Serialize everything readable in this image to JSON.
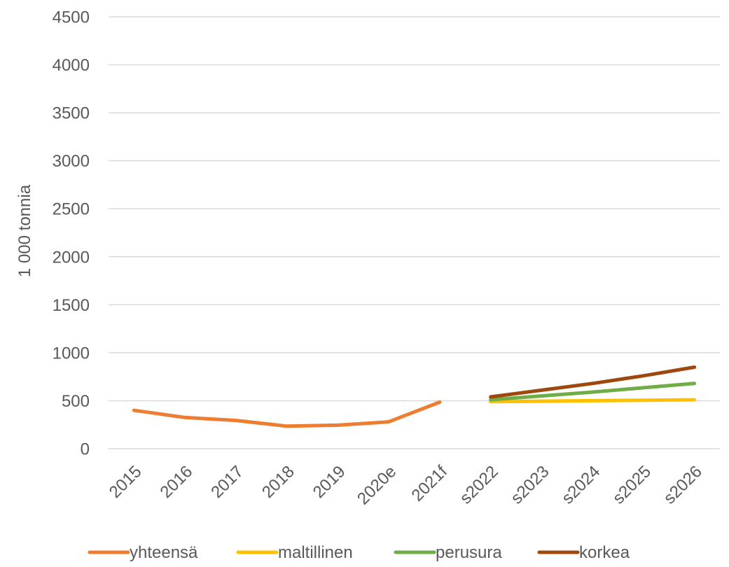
{
  "chart_data": {
    "type": "line",
    "title": "",
    "xlabel": "",
    "ylabel": "1 000 tonnia",
    "ylim": [
      0,
      4500
    ],
    "yticks": [
      0,
      500,
      1000,
      1500,
      2000,
      2500,
      3000,
      3500,
      4000,
      4500
    ],
    "grid": true,
    "legend_position": "bottom",
    "categories": [
      "2015",
      "2016",
      "2017",
      "2018",
      "2019",
      "2020e",
      "2021f",
      "s2022",
      "s2023",
      "s2024",
      "s2025",
      "s2026"
    ],
    "series": [
      {
        "name": "yhteensä",
        "color": "#ED7D31",
        "values": [
          400,
          325,
          295,
          235,
          245,
          280,
          485,
          null,
          null,
          null,
          null,
          null
        ]
      },
      {
        "name": "maltillinen",
        "color": "#FFC000",
        "values": [
          null,
          null,
          null,
          null,
          null,
          null,
          null,
          490,
          495,
          500,
          505,
          510
        ]
      },
      {
        "name": "perusura",
        "color": "#70AD47",
        "values": [
          null,
          null,
          null,
          null,
          null,
          null,
          null,
          510,
          550,
          590,
          635,
          680
        ]
      },
      {
        "name": "korkea",
        "color": "#9E480E",
        "values": [
          null,
          null,
          null,
          null,
          null,
          null,
          null,
          540,
          610,
          680,
          760,
          850
        ]
      }
    ]
  }
}
